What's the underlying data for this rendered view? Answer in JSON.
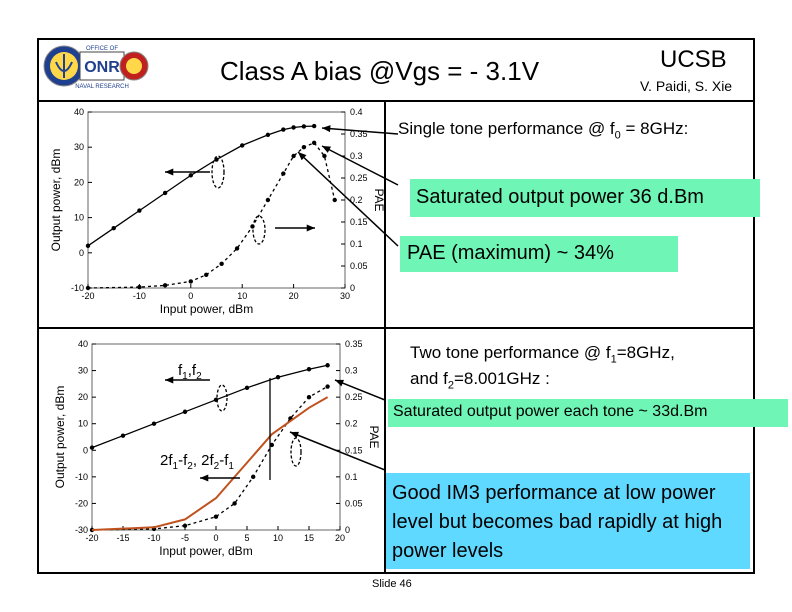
{
  "header": {
    "title": "Class A bias @Vgs = - 3.1V",
    "org": "UCSB",
    "authors": "V. Paidi, S. Xie"
  },
  "logo": {
    "icon": "onr-logo-icon",
    "text": "ONR",
    "ring_top": "OFFICE OF",
    "ring_bottom": "NAVAL RESEARCH"
  },
  "single_tone": {
    "heading": "Single tone performance @ f0 = 8GHz:",
    "heading_parts": [
      "Single tone performance @ f",
      "0",
      " = 8GHz:"
    ],
    "saturated": "Saturated output power 36 d.Bm",
    "pae_max": "PAE (maximum) ~ 34%"
  },
  "two_tone": {
    "heading_line1_parts": [
      "Two tone performance @ f",
      "1",
      "=8GHz,"
    ],
    "heading_line2_parts": [
      "and f",
      "2",
      "=8.001GHz :"
    ],
    "saturated": "Saturated output power each tone ~ 33d.Bm",
    "im3": "Good IM3 performance at low power level but becomes bad rapidly at high power levels",
    "label_f": [
      "f",
      "1",
      ",f",
      "2"
    ],
    "label_im3": [
      "2f",
      "1",
      "-f",
      "2",
      ", 2f",
      "2",
      "-f",
      "1"
    ]
  },
  "colors": {
    "green_highlight": "#6ff5b5",
    "blue_highlight": "#5fd9ff",
    "im3_curve": "#c0521e"
  },
  "chart_data": [
    {
      "type": "line",
      "xlabel": "Input power, dBm",
      "ylabel": "Output power, dBm",
      "ylabel2": "PAE",
      "x_ticks": [
        "-20",
        "-10",
        "0",
        "10",
        "20",
        "30"
      ],
      "y_ticks": [
        "-10",
        "0",
        "10",
        "20",
        "30",
        "40"
      ],
      "y2_ticks": [
        "0",
        "0.05",
        "0.1",
        "0.15",
        "0.2",
        "0.25",
        "0.3",
        "0.35",
        "0.4"
      ],
      "xlim": [
        -20,
        30
      ],
      "ylim": [
        -10,
        40
      ],
      "y2lim": [
        0,
        0.4
      ],
      "series": [
        {
          "x": [
            -20,
            -15,
            -10,
            -5,
            0,
            5,
            10,
            15,
            18,
            20,
            22,
            24
          ],
          "values": [
            2,
            7,
            12,
            17,
            22,
            26.5,
            30.5,
            33.5,
            35,
            35.6,
            35.9,
            36
          ]
        },
        {
          "axis": "right",
          "x": [
            -20,
            -10,
            -5,
            0,
            3,
            6,
            9,
            12,
            15,
            18,
            20,
            22,
            24,
            26,
            28
          ],
          "values": [
            0,
            0.002,
            0.006,
            0.015,
            0.03,
            0.055,
            0.09,
            0.14,
            0.2,
            0.26,
            0.3,
            0.32,
            0.33,
            0.3,
            0.2
          ]
        }
      ]
    },
    {
      "type": "line",
      "xlabel": "Input power, dBm",
      "ylabel": "Output power, dBm",
      "ylabel2": "PAE",
      "x_ticks": [
        "-20",
        "-15",
        "-10",
        "-5",
        "0",
        "5",
        "10",
        "15",
        "20"
      ],
      "y_ticks": [
        "-30",
        "-20",
        "-10",
        "0",
        "10",
        "20",
        "30",
        "40"
      ],
      "y2_ticks": [
        "0",
        "0.05",
        "0.1",
        "0.15",
        "0.2",
        "0.25",
        "0.3",
        "0.35"
      ],
      "xlim": [
        -20,
        20
      ],
      "ylim": [
        -30,
        40
      ],
      "y2lim": [
        0,
        0.35
      ],
      "series": [
        {
          "x": [
            -20,
            -15,
            -10,
            -5,
            0,
            5,
            10,
            15,
            18
          ],
          "values": [
            1,
            5.5,
            10,
            14.5,
            19,
            23.5,
            27.5,
            30.5,
            32
          ]
        },
        {
          "axis": "right",
          "x": [
            -20,
            -10,
            -5,
            0,
            3,
            6,
            9,
            12,
            15,
            18
          ],
          "values": [
            0,
            0.002,
            0.008,
            0.025,
            0.05,
            0.1,
            0.16,
            0.21,
            0.25,
            0.27
          ]
        },
        {
          "x": [
            -20,
            -10,
            -5,
            0,
            3,
            6,
            9,
            12,
            15,
            18
          ],
          "values": [
            -30,
            -29,
            -26,
            -18,
            -10,
            -2,
            6,
            11,
            16,
            20
          ]
        }
      ]
    }
  ]
}
